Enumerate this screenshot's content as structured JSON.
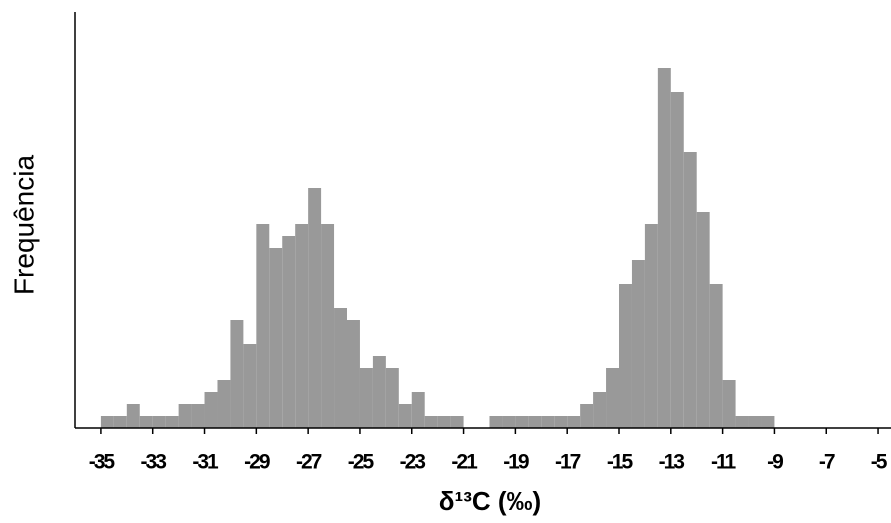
{
  "chart_data": {
    "type": "histogram",
    "xlabel": "δ¹³C (‰)",
    "ylabel": "Frequência",
    "bins": [
      -35,
      -34.5,
      -34,
      -33.5,
      -33,
      -32.5,
      -32,
      -31.5,
      -31,
      -30.5,
      -30,
      -29.5,
      -29,
      -28.5,
      -28,
      -27.5,
      -27,
      -26.5,
      -26,
      -25.5,
      -25,
      -24.5,
      -24,
      -23.5,
      -23,
      -22.5,
      -22,
      -21.5,
      -21,
      -20.5,
      -20,
      -19.5,
      -19,
      -18.5,
      -18,
      -17.5,
      -17,
      -16.5,
      -16,
      -15.5,
      -15,
      -14.5,
      -14,
      -13.5,
      -13,
      -12.5,
      -12,
      -11.5,
      -11,
      -10.5,
      -10,
      -9.5,
      -9
    ],
    "counts": [
      1,
      1,
      2,
      1,
      1,
      1,
      2,
      2,
      3,
      4,
      9,
      7,
      17,
      15,
      16,
      17,
      20,
      17,
      10,
      9,
      5,
      6,
      5,
      2,
      3,
      1,
      1,
      1,
      0,
      0,
      1,
      1,
      1,
      1,
      1,
      1,
      1,
      2,
      3,
      5,
      12,
      14,
      17,
      30,
      28,
      23,
      18,
      12,
      4,
      1,
      1,
      1
    ],
    "color": "#999999",
    "xlim": [
      -36,
      -4.5
    ],
    "ylim": [
      0,
      34
    ],
    "xticks": [
      -35,
      -33,
      -31,
      -29,
      -27,
      -25,
      -23,
      -21,
      -19,
      -17,
      -15,
      -13,
      -11,
      -9,
      -7,
      -5
    ]
  }
}
